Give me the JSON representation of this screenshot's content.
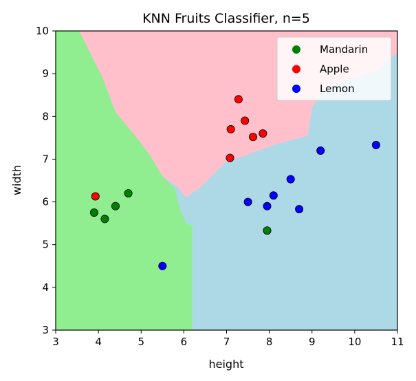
{
  "chart_data": {
    "type": "scatter",
    "title": "KNN Fruits Classifier, n=5",
    "xlabel": "height",
    "ylabel": "width",
    "xlim": [
      3,
      11
    ],
    "ylim": [
      3,
      10
    ],
    "xticks": [
      "3",
      "4",
      "5",
      "6",
      "7",
      "8",
      "9",
      "10",
      "11"
    ],
    "yticks": [
      "3",
      "4",
      "5",
      "6",
      "7",
      "8",
      "9",
      "10"
    ],
    "grid": false,
    "legend_position": "top-right",
    "background": "decision-regions",
    "regions": [
      {
        "class": "Apple",
        "color": "#ffc0cb",
        "polygon": [
          [
            3.55,
            10
          ],
          [
            11,
            10
          ],
          [
            11,
            9.5
          ],
          [
            10.5,
            9.05
          ],
          [
            9.8,
            8.85
          ],
          [
            9.2,
            8.55
          ],
          [
            9.0,
            8.2
          ],
          [
            8.9,
            7.55
          ],
          [
            8.15,
            7.35
          ],
          [
            7.35,
            7.05
          ],
          [
            7.0,
            6.95
          ],
          [
            6.4,
            6.35
          ],
          [
            6.05,
            6.1
          ],
          [
            5.85,
            6.35
          ],
          [
            5.5,
            6.6
          ],
          [
            5.2,
            7.1
          ],
          [
            4.9,
            7.5
          ],
          [
            4.4,
            8.1
          ],
          [
            4.1,
            8.9
          ],
          [
            3.8,
            9.5
          ]
        ]
      },
      {
        "class": "Mandarin",
        "color": "#90ee90",
        "polygon": [
          [
            3,
            3
          ],
          [
            6.2,
            3
          ],
          [
            6.2,
            5.45
          ],
          [
            6.05,
            5.5
          ],
          [
            5.9,
            5.85
          ],
          [
            5.8,
            6.3
          ],
          [
            5.5,
            6.6
          ],
          [
            5.2,
            7.1
          ],
          [
            4.9,
            7.5
          ],
          [
            4.4,
            8.1
          ],
          [
            4.1,
            8.9
          ],
          [
            3.8,
            9.5
          ],
          [
            3.55,
            10
          ],
          [
            3,
            10
          ]
        ]
      },
      {
        "class": "Lemon",
        "color": "#add8e6"
      }
    ],
    "series": [
      {
        "name": "Mandarin",
        "color": "#008000",
        "points": [
          [
            3.9,
            5.75
          ],
          [
            4.15,
            5.6
          ],
          [
            4.4,
            5.9
          ],
          [
            4.7,
            6.2
          ],
          [
            7.95,
            5.33
          ]
        ]
      },
      {
        "name": "Apple",
        "color": "#ff0000",
        "points": [
          [
            3.93,
            6.13
          ],
          [
            7.08,
            7.03
          ],
          [
            7.1,
            7.7
          ],
          [
            7.28,
            8.4
          ],
          [
            7.43,
            7.9
          ],
          [
            7.62,
            7.52
          ],
          [
            7.85,
            7.6
          ]
        ]
      },
      {
        "name": "Lemon",
        "color": "#0000ff",
        "points": [
          [
            5.5,
            4.5
          ],
          [
            7.5,
            6.0
          ],
          [
            7.95,
            5.9
          ],
          [
            8.1,
            6.15
          ],
          [
            8.5,
            6.53
          ],
          [
            8.7,
            5.83
          ],
          [
            9.2,
            7.2
          ],
          [
            10.5,
            7.33
          ]
        ]
      }
    ]
  }
}
